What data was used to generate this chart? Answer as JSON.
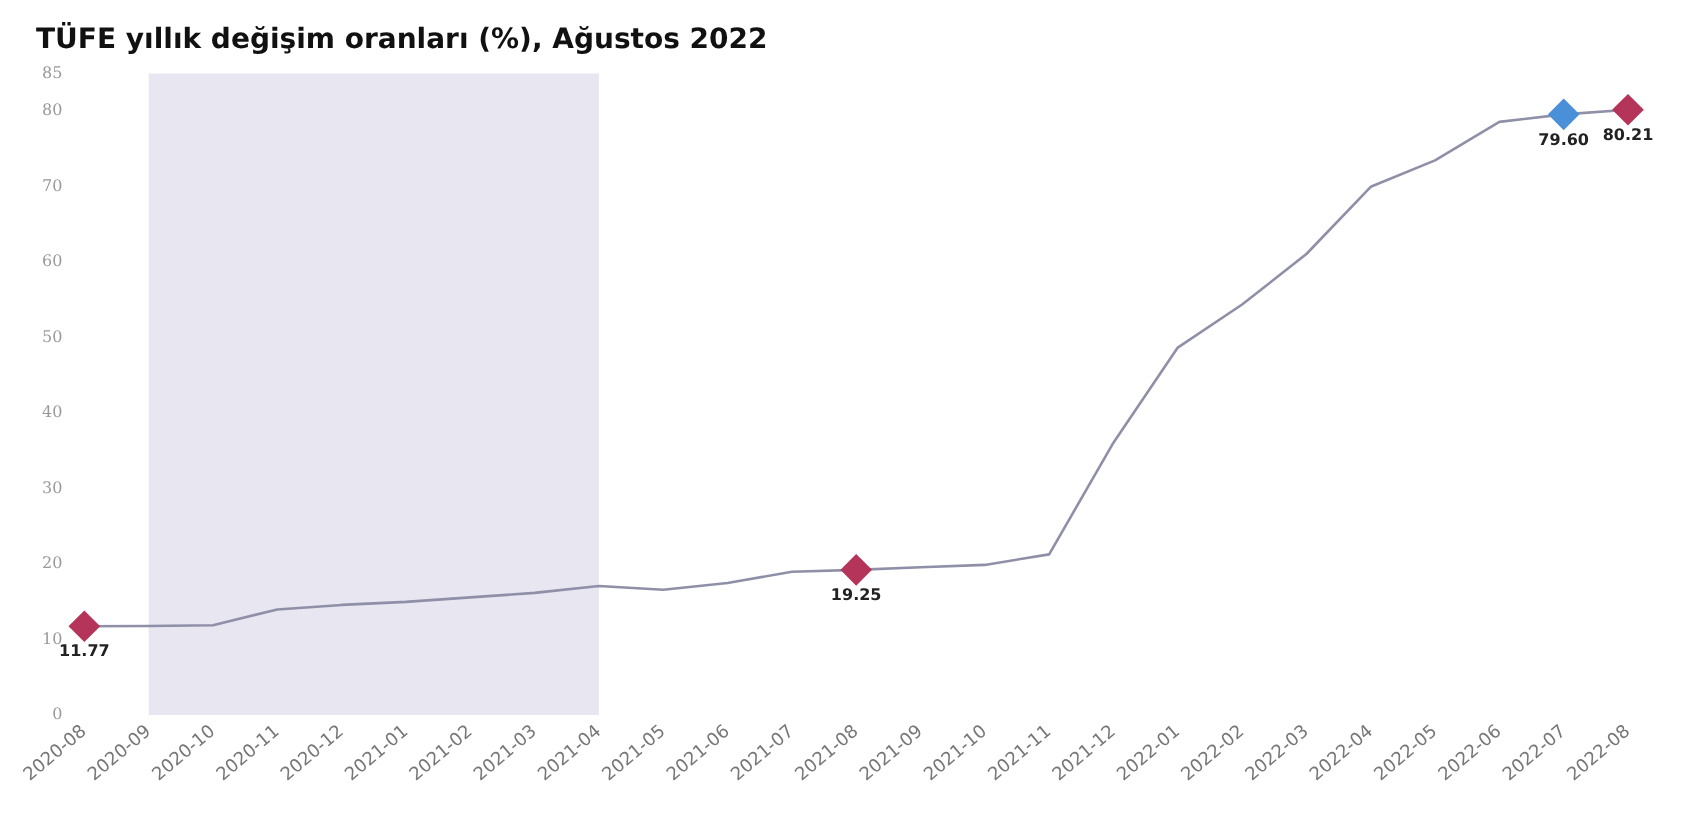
{
  "chart_data": {
    "type": "line",
    "title": "TÜFE yıllık değişim oranları (%), Ağustos 2022",
    "categories": [
      "2020-08",
      "2020-09",
      "2020-10",
      "2020-11",
      "2020-12",
      "2021-01",
      "2021-02",
      "2021-03",
      "2021-04",
      "2021-05",
      "2021-06",
      "2021-07",
      "2021-08",
      "2021-09",
      "2021-10",
      "2021-11",
      "2021-12",
      "2022-01",
      "2022-02",
      "2022-03",
      "2022-04",
      "2022-05",
      "2022-06",
      "2022-07",
      "2022-08"
    ],
    "series": [
      {
        "color": "#8f8fa8",
        "values": [
          11.77,
          11.8,
          11.9,
          14,
          14.6,
          15,
          15.6,
          16.2,
          17.1,
          16.6,
          17.5,
          19,
          19.25,
          19.6,
          19.9,
          21.3,
          36.1,
          48.7,
          54.4,
          61.1,
          70,
          73.5,
          78.6,
          79.6,
          80.21
        ],
        "colors": [
          "#b5345a",
          null,
          null,
          null,
          null,
          null,
          null,
          null,
          null,
          null,
          null,
          null,
          "#b5345a",
          null,
          null,
          null,
          null,
          null,
          null,
          null,
          null,
          null,
          null,
          "#4a90d9",
          "#b5345a"
        ],
        "value_labels": [
          "11.77",
          null,
          null,
          null,
          null,
          null,
          null,
          null,
          null,
          null,
          null,
          null,
          "19.25",
          null,
          null,
          null,
          null,
          null,
          null,
          null,
          null,
          null,
          null,
          "79.60",
          "80.21"
        ]
      }
    ],
    "bands": [
      {
        "axis": "x",
        "from": "2020-09",
        "to": "2021-04",
        "color": "#d8d6e8"
      }
    ],
    "ylim": [
      0,
      85
    ],
    "yticks": [
      0,
      10,
      20,
      30,
      40,
      50,
      60,
      70,
      80,
      85
    ],
    "grid": false,
    "legend": false
  }
}
